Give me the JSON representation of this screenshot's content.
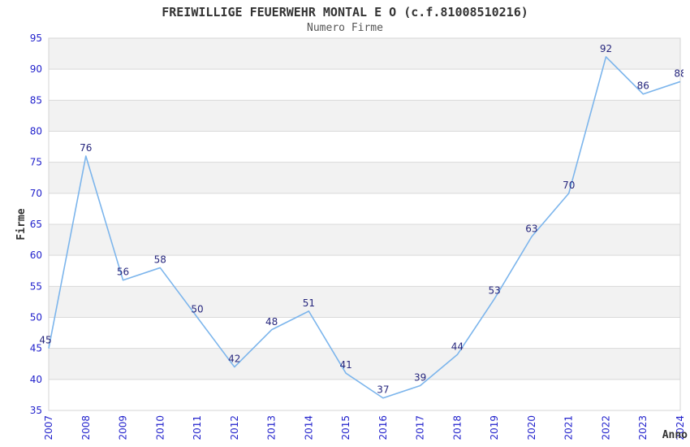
{
  "title": "FREIWILLIGE FEUERWEHR MONTAL E O (c.f.81008510216)",
  "subtitle": "Numero Firme",
  "chart_data": {
    "type": "line",
    "title": "FREIWILLIGE FEUERWEHR MONTAL E O (c.f.81008510216)",
    "subtitle": "Numero Firme",
    "xlabel": "Anno",
    "ylabel": "Firme",
    "categories": [
      "2007",
      "2008",
      "2009",
      "2010",
      "2011",
      "2012",
      "2013",
      "2014",
      "2015",
      "2016",
      "2017",
      "2018",
      "2019",
      "2020",
      "2021",
      "2022",
      "2023",
      "2024"
    ],
    "series": [
      {
        "name": "Numero Firme",
        "values": [
          45,
          76,
          56,
          58,
          50,
          42,
          48,
          51,
          41,
          37,
          39,
          44,
          53,
          63,
          70,
          92,
          86,
          88
        ]
      }
    ],
    "ylim": [
      35,
      95
    ],
    "ytick_step": 5,
    "yticks": [
      35,
      40,
      45,
      50,
      55,
      60,
      65,
      70,
      75,
      80,
      85,
      90,
      95
    ],
    "grid": "horizontal gridlines with alternating shaded bands",
    "legend": "none",
    "colors": {
      "line": "#7cb5ec",
      "data_label": "#26267d",
      "axis_tick_label": "#2222cc",
      "band_fill": "#f2f2f2",
      "grid_line": "#d9d9d9",
      "plot_border": "#d4d4d4",
      "title_text": "#333333",
      "subtitle_text": "#555555",
      "axis_title_text": "#333333",
      "background": "#ffffff"
    }
  }
}
